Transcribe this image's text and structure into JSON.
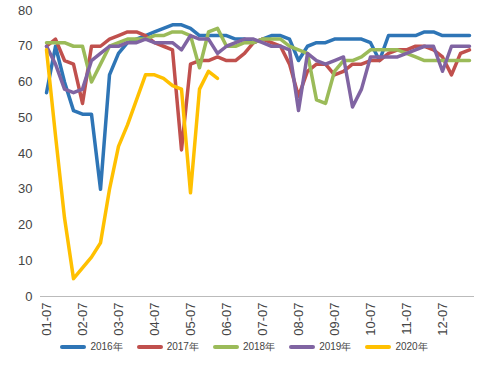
{
  "chart_data": {
    "type": "line",
    "categories": [
      "01-07",
      null,
      null,
      null,
      "02-07",
      null,
      null,
      null,
      "03-07",
      null,
      null,
      null,
      "04-07",
      null,
      null,
      null,
      "05-07",
      null,
      null,
      null,
      "06-07",
      null,
      null,
      null,
      "07-07",
      null,
      null,
      null,
      "08-07",
      null,
      null,
      null,
      "09-07",
      null,
      null,
      null,
      "10-07",
      null,
      null,
      null,
      "11-07",
      null,
      null,
      null,
      "12-07",
      null,
      null,
      null
    ],
    "series": [
      {
        "name": "2016年",
        "color": "#2e75b6",
        "values": [
          57,
          70,
          60,
          52,
          51,
          51,
          30,
          62,
          68,
          71,
          72,
          73,
          74,
          75,
          76,
          76,
          75,
          73,
          73,
          73,
          73,
          72,
          72,
          71,
          72,
          73,
          73,
          72,
          66,
          70,
          71,
          71,
          72,
          72,
          72,
          72,
          71,
          66,
          73,
          73,
          73,
          73,
          74,
          74,
          73,
          73,
          73,
          73
        ]
      },
      {
        "name": "2017年",
        "color": "#c0504d",
        "values": [
          70,
          72,
          66,
          65,
          54,
          70,
          70,
          72,
          73,
          74,
          74,
          73,
          71,
          70,
          69,
          41,
          65,
          66,
          66,
          67,
          66,
          66,
          68,
          71,
          72,
          71,
          70,
          65,
          56,
          63,
          65,
          65,
          62,
          63,
          65,
          65,
          66,
          66,
          68,
          69,
          69,
          70,
          70,
          69,
          67,
          62,
          68,
          69
        ]
      },
      {
        "name": "2018年",
        "color": "#9bbb59",
        "values": [
          71,
          71,
          71,
          70,
          70,
          60,
          65,
          70,
          71,
          72,
          72,
          72,
          73,
          73,
          74,
          74,
          73,
          64,
          74,
          75,
          70,
          70,
          71,
          71,
          72,
          72,
          72,
          70,
          69,
          68,
          55,
          54,
          63,
          66,
          66,
          67,
          69,
          69,
          69,
          69,
          68,
          67,
          66,
          66,
          66,
          66,
          66,
          66
        ]
      },
      {
        "name": "2019年",
        "color": "#8064a2",
        "values": [
          70,
          65,
          58,
          57,
          58,
          66,
          68,
          70,
          70,
          71,
          71,
          72,
          71,
          71,
          71,
          69,
          73,
          72,
          72,
          68,
          70,
          71,
          72,
          72,
          71,
          70,
          70,
          69,
          52,
          68,
          66,
          65,
          66,
          67,
          53,
          58,
          67,
          67,
          67,
          67,
          68,
          69,
          70,
          70,
          63,
          70,
          70,
          70
        ]
      },
      {
        "name": "2020年",
        "color": "#ffc000",
        "values": [
          69,
          45,
          22,
          5,
          8,
          11,
          15,
          30,
          42,
          48,
          55,
          62,
          62,
          61,
          59,
          58,
          29,
          58,
          63,
          61,
          null,
          null,
          null,
          null,
          null,
          null,
          null,
          null,
          null,
          null,
          null,
          null,
          null,
          null,
          null,
          null,
          null,
          null,
          null,
          null,
          null,
          null,
          null,
          null,
          null,
          null,
          null,
          null
        ]
      }
    ],
    "ylim": [
      0,
      80
    ],
    "yticks": [
      0,
      10,
      20,
      30,
      40,
      50,
      60,
      70,
      80
    ],
    "grid": false,
    "legend": "bottom"
  }
}
